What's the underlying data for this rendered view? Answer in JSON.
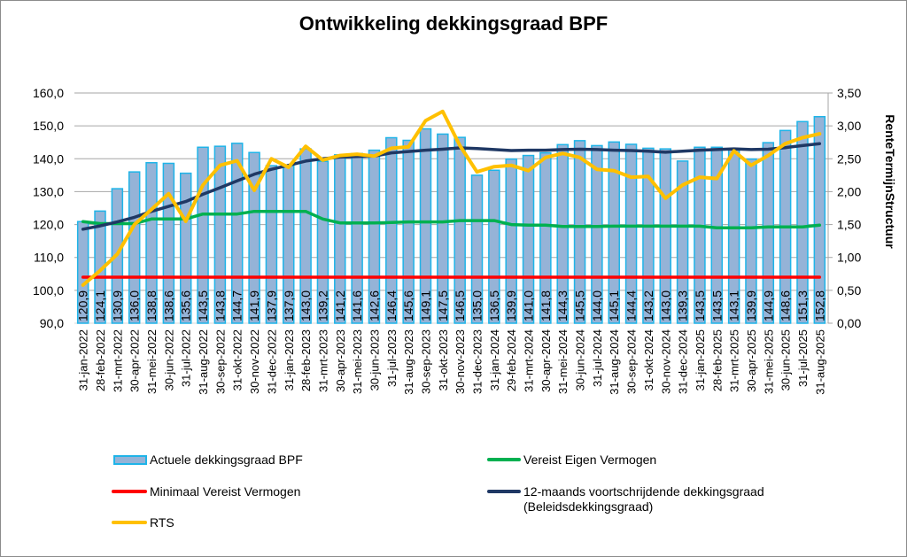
{
  "chart_data": {
    "type": "bar+line",
    "title": "Ontwikkeling dekkingsgraad BPF",
    "xlabel": "",
    "ylabel": "",
    "y2label": "RenteTermijnStructuur",
    "ylim": [
      90,
      160
    ],
    "y2lim": [
      0,
      3.5
    ],
    "yticks": [
      "90,0",
      "100,0",
      "110,0",
      "120,0",
      "130,0",
      "140,0",
      "150,0",
      "160,0"
    ],
    "y2ticks": [
      "0,00",
      "0,50",
      "1,00",
      "1,50",
      "2,00",
      "2,50",
      "3,00",
      "3,50"
    ],
    "grid": true,
    "legend_position": "bottom",
    "categories": [
      "31-jan-2022",
      "28-feb-2022",
      "31-mrt-2022",
      "30-apr-2022",
      "31-mei-2022",
      "30-jun-2022",
      "31-jul-2022",
      "31-aug-2022",
      "30-sep-2022",
      "31-okt-2022",
      "30-nov-2022",
      "31-dec-2022",
      "31-jan-2023",
      "28-feb-2023",
      "31-mrt-2023",
      "30-apr-2023",
      "31-mei-2023",
      "30-jun-2023",
      "31-jul-2023",
      "31-aug-2023",
      "30-sep-2023",
      "31-okt-2023",
      "30-nov-2023",
      "31-dec-2023",
      "31-jan-2024",
      "29-feb-2024",
      "31-mrt-2024",
      "30-apr-2024",
      "31-mei-2024",
      "30-jun-2024",
      "31-jul-2024",
      "31-aug-2024",
      "30-sep-2024",
      "31-okt-2024",
      "30-nov-2024",
      "31-dec-2024",
      "31-jan-2025",
      "28-feb-2025",
      "31-mrt-2025",
      "30-apr-2025",
      "31-mei-2025",
      "30-jun-2025",
      "31-jul-2025",
      "31-aug-2025"
    ],
    "series": [
      {
        "name": "Actuele dekkingsgraad BPF",
        "type": "bar",
        "axis": "left",
        "color": "#95b3d7",
        "edge_color": "#1fb4e8",
        "values": [
          120.9,
          124.1,
          130.9,
          136.0,
          138.8,
          138.6,
          135.6,
          143.5,
          143.8,
          144.7,
          141.9,
          137.9,
          137.9,
          143.0,
          139.2,
          141.2,
          141.6,
          142.6,
          146.4,
          145.6,
          149.1,
          147.5,
          146.5,
          135.0,
          136.5,
          139.9,
          141.0,
          141.8,
          144.3,
          145.5,
          144.0,
          145.1,
          144.4,
          143.2,
          143.0,
          139.3,
          143.5,
          143.5,
          143.1,
          139.9,
          144.9,
          148.6,
          151.3,
          152.8
        ],
        "labels": [
          "120,9",
          "124,1",
          "130,9",
          "136,0",
          "138,8",
          "138,6",
          "135,6",
          "143,5",
          "143,8",
          "144,7",
          "141,9",
          "137,9",
          "137,9",
          "143,0",
          "139,2",
          "141,2",
          "141,6",
          "142,6",
          "146,4",
          "145,6",
          "149,1",
          "147,5",
          "146,5",
          "135,0",
          "136,5",
          "139,9",
          "141,0",
          "141,8",
          "144,3",
          "145,5",
          "144,0",
          "145,1",
          "144,4",
          "143,2",
          "143,0",
          "139,3",
          "143,5",
          "143,5",
          "143,1",
          "139,9",
          "144,9",
          "148,6",
          "151,3",
          "152,8"
        ]
      },
      {
        "name": "Vereist Eigen Vermogen",
        "type": "line",
        "axis": "left",
        "color": "#00b050",
        "values": [
          120.9,
          120.3,
          120.3,
          120.3,
          121.7,
          121.7,
          121.7,
          123.2,
          123.2,
          123.2,
          124.0,
          124.0,
          124.0,
          124.0,
          121.7,
          120.5,
          120.5,
          120.5,
          120.6,
          120.8,
          120.8,
          120.8,
          121.2,
          121.2,
          121.2,
          120.0,
          119.8,
          119.8,
          119.4,
          119.4,
          119.4,
          119.5,
          119.5,
          119.5,
          119.5,
          119.5,
          119.5,
          119.0,
          119.0,
          119.0,
          119.3,
          119.3,
          119.3,
          119.8
        ]
      },
      {
        "name": "Minimaal Vereist Vermogen",
        "type": "line",
        "axis": "left",
        "color": "#ff0000",
        "values": [
          104.0,
          104.0,
          104.0,
          104.0,
          104.0,
          104.0,
          104.0,
          104.0,
          104.0,
          104.0,
          104.0,
          104.0,
          104.0,
          104.0,
          104.0,
          104.0,
          104.0,
          104.0,
          104.0,
          104.0,
          104.0,
          104.0,
          104.0,
          104.0,
          104.0,
          104.0,
          104.0,
          104.0,
          104.0,
          104.0,
          104.0,
          104.0,
          104.0,
          104.0,
          104.0,
          104.0,
          104.0,
          104.0,
          104.0,
          104.0,
          104.0,
          104.0,
          104.0,
          104.0
        ]
      },
      {
        "name": "12-maands voortschrijdende dekkingsgraad (Beleidsdekkingsgraad)",
        "type": "line",
        "axis": "left",
        "color": "#1f3864",
        "values": [
          118.6,
          119.6,
          120.8,
          122.2,
          124.0,
          125.5,
          127.0,
          129.2,
          131.2,
          133.3,
          135.3,
          136.8,
          138.0,
          139.3,
          140.0,
          140.5,
          140.7,
          140.8,
          141.8,
          142.2,
          142.6,
          142.9,
          143.3,
          143.1,
          142.8,
          142.5,
          142.6,
          142.6,
          142.8,
          142.9,
          142.8,
          142.6,
          142.5,
          142.3,
          142.0,
          142.3,
          142.6,
          142.8,
          143.0,
          142.8,
          142.9,
          143.4,
          144.0,
          144.6
        ]
      },
      {
        "name": "RTS",
        "type": "line",
        "axis": "right",
        "color": "#ffc000",
        "values": [
          0.58,
          0.8,
          1.05,
          1.5,
          1.73,
          1.97,
          1.55,
          2.1,
          2.4,
          2.47,
          2.02,
          2.5,
          2.37,
          2.69,
          2.48,
          2.55,
          2.57,
          2.54,
          2.66,
          2.68,
          3.08,
          3.22,
          2.7,
          2.3,
          2.38,
          2.4,
          2.32,
          2.52,
          2.58,
          2.52,
          2.34,
          2.32,
          2.22,
          2.23,
          1.9,
          2.1,
          2.22,
          2.2,
          2.62,
          2.4,
          2.55,
          2.73,
          2.82,
          2.88
        ]
      }
    ]
  },
  "legend": {
    "items": [
      {
        "label": "Actuele dekkingsgraad BPF"
      },
      {
        "label": "Vereist Eigen Vermogen"
      },
      {
        "label": "Minimaal Vereist Vermogen"
      },
      {
        "label": "12-maands voortschrijdende dekkingsgraad",
        "label_line2": "(Beleidsdekkingsgraad)"
      },
      {
        "label": "RTS"
      }
    ]
  }
}
